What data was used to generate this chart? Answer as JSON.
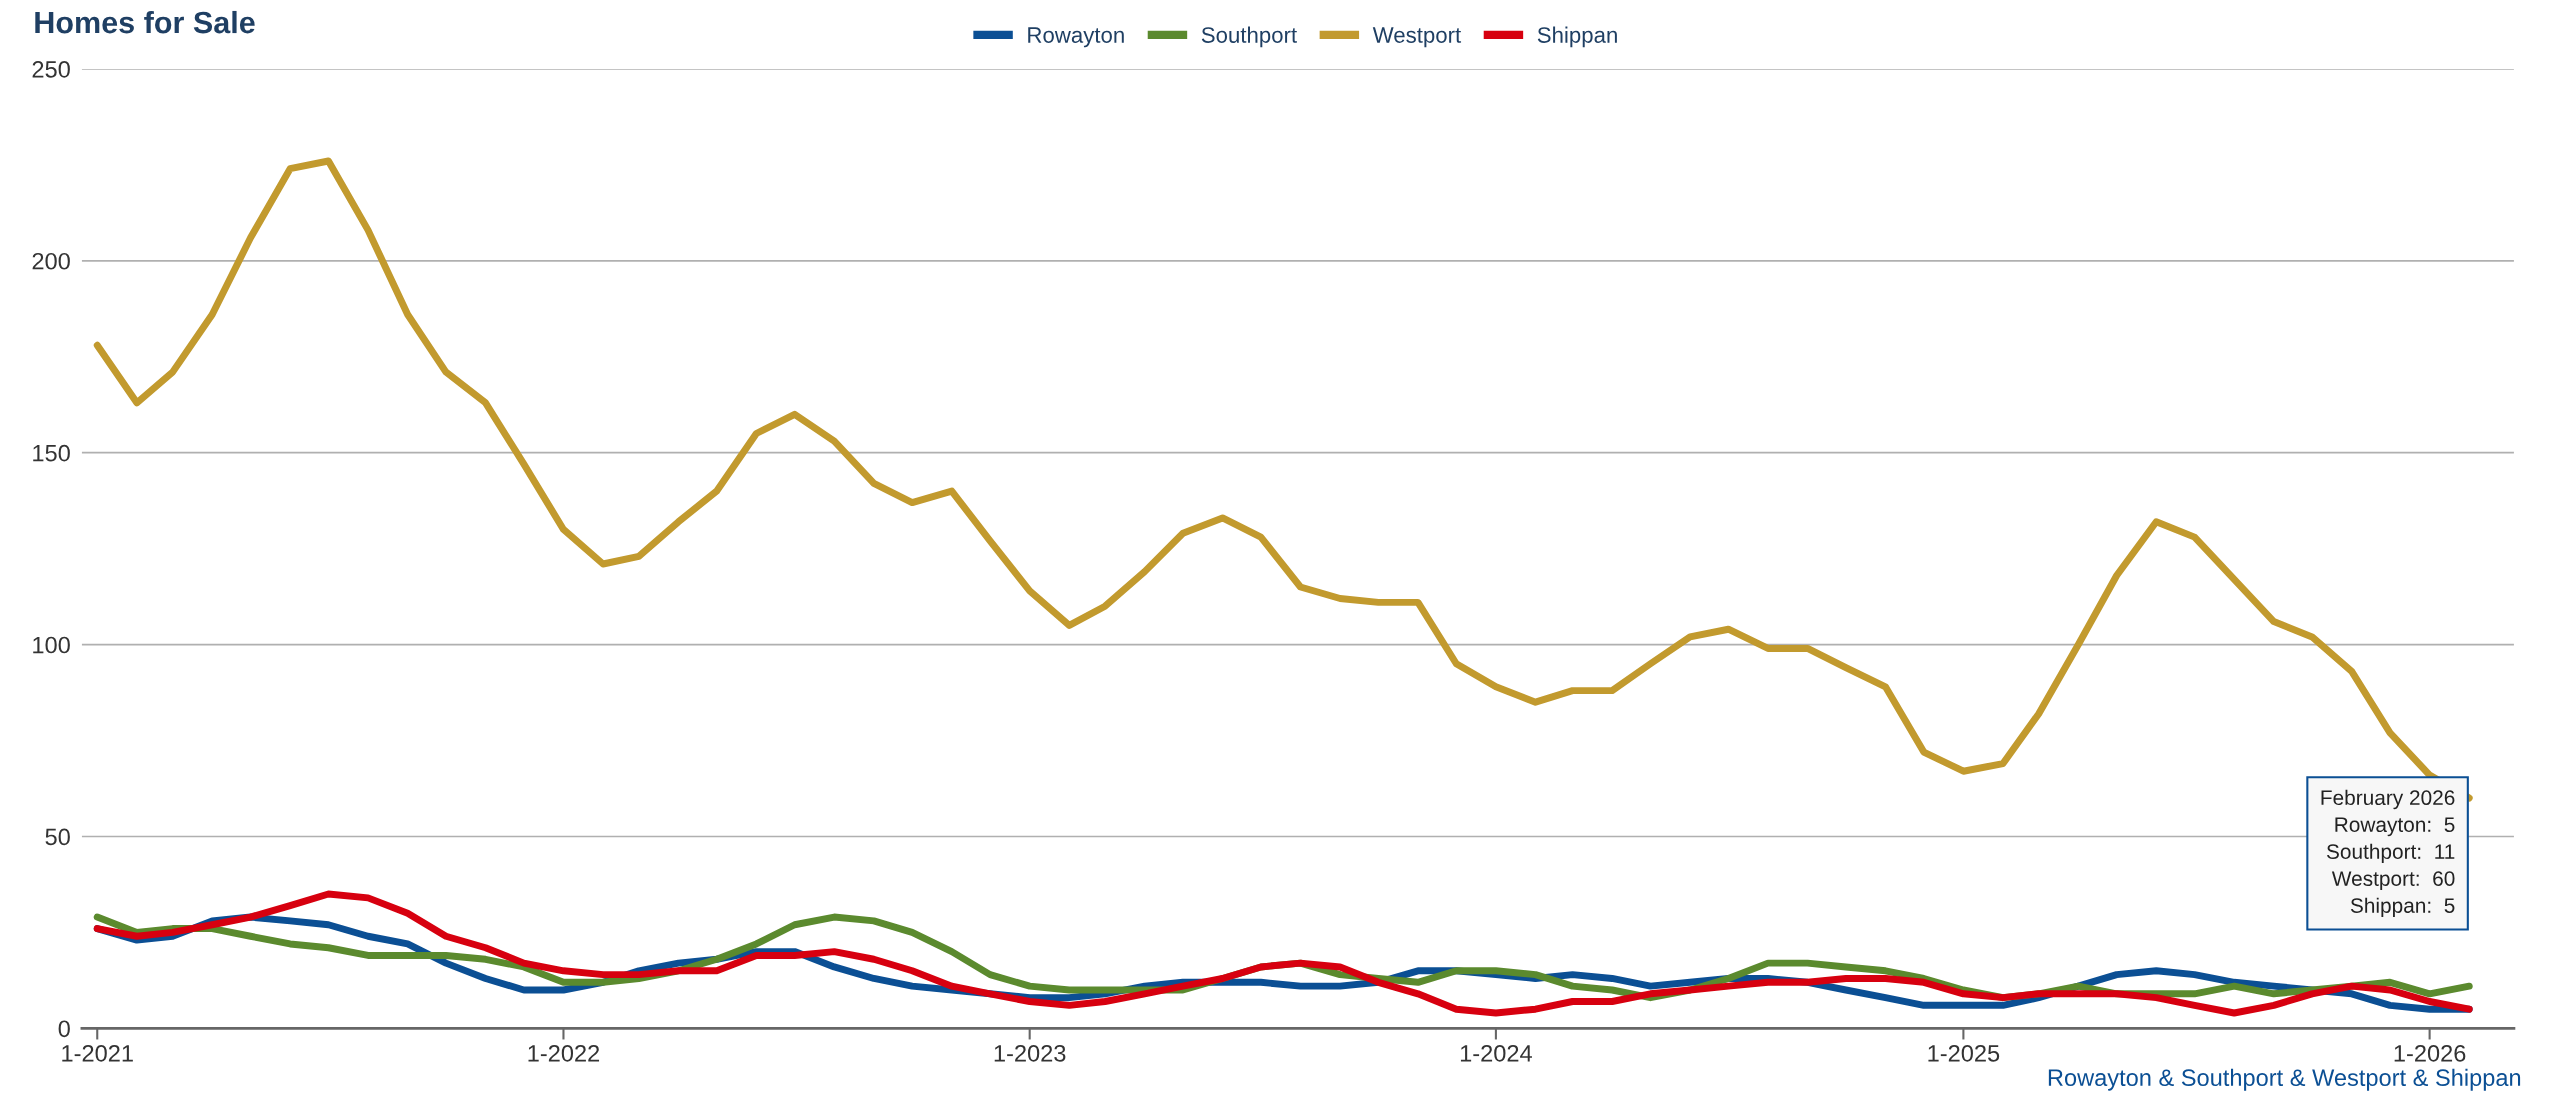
{
  "chart_data": {
    "type": "line",
    "title": "Homes for Sale",
    "x": [
      "2021-01",
      "2021-02",
      "2021-03",
      "2021-04",
      "2021-05",
      "2021-06",
      "2021-07",
      "2021-08",
      "2021-09",
      "2021-10",
      "2021-11",
      "2021-12",
      "2022-01",
      "2022-02",
      "2022-03",
      "2022-04",
      "2022-05",
      "2022-06",
      "2022-07",
      "2022-08",
      "2022-09",
      "2022-10",
      "2022-11",
      "2022-12",
      "2023-01",
      "2023-02",
      "2023-03",
      "2023-04",
      "2023-05",
      "2023-06",
      "2023-07",
      "2023-08",
      "2023-09",
      "2023-10",
      "2023-11",
      "2023-12",
      "2024-01",
      "2024-02",
      "2024-03",
      "2024-04",
      "2024-05",
      "2024-06",
      "2024-07",
      "2024-08",
      "2024-09",
      "2024-10",
      "2024-11",
      "2024-12",
      "2025-01",
      "2025-02",
      "2025-03",
      "2025-04",
      "2025-05",
      "2025-06",
      "2025-07",
      "2025-08",
      "2025-09",
      "2025-10",
      "2025-11",
      "2025-12",
      "2026-01",
      "2026-02"
    ],
    "series": [
      {
        "name": "Rowayton",
        "color": "#0b4f94",
        "values": [
          26,
          23,
          24,
          28,
          29,
          28,
          27,
          24,
          22,
          17,
          13,
          10,
          10,
          12,
          15,
          17,
          18,
          20,
          20,
          16,
          13,
          11,
          10,
          9,
          8,
          8,
          9,
          11,
          12,
          12,
          12,
          11,
          11,
          12,
          15,
          15,
          14,
          13,
          14,
          13,
          11,
          12,
          13,
          13,
          12,
          10,
          8,
          6,
          6,
          6,
          8,
          11,
          14,
          15,
          14,
          12,
          11,
          10,
          9,
          6,
          5,
          5
        ]
      },
      {
        "name": "Southport",
        "color": "#5b8a2e",
        "values": [
          29,
          25,
          26,
          26,
          24,
          22,
          21,
          19,
          19,
          19,
          18,
          16,
          12,
          12,
          13,
          15,
          18,
          22,
          27,
          29,
          28,
          25,
          20,
          14,
          11,
          10,
          10,
          10,
          10,
          13,
          16,
          17,
          14,
          13,
          12,
          15,
          15,
          14,
          11,
          10,
          8,
          10,
          13,
          17,
          17,
          16,
          15,
          13,
          10,
          8,
          9,
          11,
          9,
          9,
          9,
          11,
          9,
          10,
          11,
          12,
          9,
          11
        ]
      },
      {
        "name": "Westport",
        "color": "#c29a2e",
        "values": [
          178,
          163,
          171,
          186,
          206,
          224,
          226,
          208,
          186,
          171,
          163,
          147,
          130,
          121,
          123,
          132,
          140,
          155,
          160,
          153,
          142,
          137,
          140,
          127,
          114,
          105,
          110,
          119,
          129,
          133,
          128,
          115,
          112,
          111,
          111,
          95,
          89,
          85,
          88,
          88,
          95,
          102,
          104,
          99,
          99,
          94,
          89,
          72,
          67,
          69,
          82,
          100,
          118,
          132,
          128,
          117,
          106,
          102,
          93,
          77,
          66,
          60
        ]
      },
      {
        "name": "Shippan",
        "color": "#d7000f",
        "values": [
          26,
          24,
          25,
          27,
          29,
          32,
          35,
          34,
          30,
          24,
          21,
          17,
          15,
          14,
          14,
          15,
          15,
          19,
          19,
          20,
          18,
          15,
          11,
          9,
          7,
          6,
          7,
          9,
          11,
          13,
          16,
          17,
          16,
          12,
          9,
          5,
          4,
          5,
          7,
          7,
          9,
          10,
          11,
          12,
          12,
          13,
          13,
          12,
          9,
          8,
          9,
          9,
          9,
          8,
          6,
          4,
          6,
          9,
          11,
          10,
          7,
          5
        ]
      }
    ],
    "xlim": [
      "2020-12-20",
      "2026-03-08"
    ],
    "xticks": [
      {
        "value": "2021-01",
        "label": "1-2021"
      },
      {
        "value": "2022-01",
        "label": "1-2022"
      },
      {
        "value": "2023-01",
        "label": "1-2023"
      },
      {
        "value": "2024-01",
        "label": "1-2024"
      },
      {
        "value": "2025-01",
        "label": "1-2025"
      },
      {
        "value": "2026-01",
        "label": "1-2026"
      }
    ],
    "ylim": [
      0,
      250
    ],
    "yticks": [
      0,
      50,
      100,
      150,
      200,
      250
    ],
    "grid": "y",
    "legend": "top",
    "marker": "none",
    "line_style": "solid",
    "annotations": [
      {
        "text": "February 2026\nRowayton:  5\nSouthport:  11\nWestport:  60\nShippan:  5",
        "x": "2026-02",
        "y": 60
      },
      "Rowayton & Southport & Westport & Shippan"
    ]
  }
}
